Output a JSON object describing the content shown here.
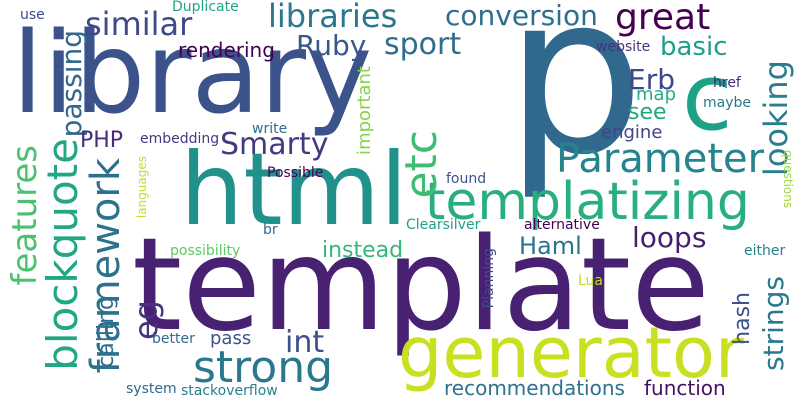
{
  "words": [
    {
      "id": "template",
      "text": "template",
      "color": "#482173"
    },
    {
      "id": "library",
      "text": "library",
      "color": "#3b528b"
    },
    {
      "id": "p",
      "text": "p",
      "color": "#31688e"
    },
    {
      "id": "html",
      "text": "html",
      "color": "#21918c"
    },
    {
      "id": "generator",
      "text": "generator",
      "color": "#c8e020"
    },
    {
      "id": "c",
      "text": "c",
      "color": "#1fa187"
    },
    {
      "id": "templatizing",
      "text": "templatizing",
      "color": "#29af7f"
    },
    {
      "id": "parameter",
      "text": "Parameter",
      "color": "#25848e"
    },
    {
      "id": "strong",
      "text": "strong",
      "color": "#2a788e"
    },
    {
      "id": "etc",
      "text": "etc",
      "color": "#3dbc74"
    },
    {
      "id": "framework",
      "text": "framework",
      "color": "#2c728e"
    },
    {
      "id": "blockquote",
      "text": "blockquote",
      "color": "#22a785"
    },
    {
      "id": "features",
      "text": "features",
      "color": "#4ac16d"
    },
    {
      "id": "libraries",
      "text": "libraries",
      "color": "#2a788e"
    },
    {
      "id": "conversion",
      "text": "conversion",
      "color": "#2d708e"
    },
    {
      "id": "similar",
      "text": "similar",
      "color": "#3e4a89"
    },
    {
      "id": "great",
      "text": "great",
      "color": "#440154"
    },
    {
      "id": "ruby",
      "text": "Ruby",
      "color": "#38588c"
    },
    {
      "id": "sport",
      "text": "sport",
      "color": "#2e6e8e"
    },
    {
      "id": "basic",
      "text": "basic",
      "color": "#1f9e89"
    },
    {
      "id": "smarty",
      "text": "Smarty",
      "color": "#443983"
    },
    {
      "id": "looking",
      "text": "looking",
      "color": "#287d8e"
    },
    {
      "id": "passing",
      "text": "passing",
      "color": "#31688e"
    },
    {
      "id": "erb",
      "text": "Erb",
      "color": "#3f4788"
    },
    {
      "id": "loops",
      "text": "loops",
      "color": "#481f70"
    },
    {
      "id": "haml",
      "text": "Haml",
      "color": "#2b748e"
    },
    {
      "id": "strings",
      "text": "strings",
      "color": "#2a788e"
    },
    {
      "id": "eg",
      "text": "eg",
      "color": "#46327e"
    },
    {
      "id": "int",
      "text": "int",
      "color": "#3b528b"
    },
    {
      "id": "php",
      "text": "PHP",
      "color": "#472d7b"
    },
    {
      "id": "rendering",
      "text": "rendering",
      "color": "#440154"
    },
    {
      "id": "recommendations",
      "text": "recommendations",
      "color": "#2c728e"
    },
    {
      "id": "function",
      "text": "function",
      "color": "#471164"
    },
    {
      "id": "hash",
      "text": "hash",
      "color": "#3b528b"
    },
    {
      "id": "calling",
      "text": "calling",
      "color": "#2e6e8e"
    },
    {
      "id": "instead",
      "text": "instead",
      "color": "#35b779"
    },
    {
      "id": "see",
      "text": "see",
      "color": "#22a884"
    },
    {
      "id": "map",
      "text": "map",
      "color": "#25ac82"
    },
    {
      "id": "engine",
      "text": "engine",
      "color": "#414487"
    },
    {
      "id": "important",
      "text": "important",
      "color": "#86d549"
    },
    {
      "id": "pass",
      "text": "pass",
      "color": "#3b528b"
    },
    {
      "id": "duplicate",
      "text": "Duplicate",
      "color": "#20a386"
    },
    {
      "id": "use",
      "text": "use",
      "color": "#3e4a89"
    },
    {
      "id": "website",
      "text": "website",
      "color": "#46337e"
    },
    {
      "id": "href",
      "text": "href",
      "color": "#482878"
    },
    {
      "id": "maybe",
      "text": "maybe",
      "color": "#2a788e"
    },
    {
      "id": "write",
      "text": "write",
      "color": "#2f6c8e"
    },
    {
      "id": "embedding",
      "text": "embedding",
      "color": "#443a83"
    },
    {
      "id": "possible",
      "text": "Possible",
      "color": "#440154"
    },
    {
      "id": "found",
      "text": "found",
      "color": "#3b528b"
    },
    {
      "id": "clearsilver",
      "text": "Clearsilver",
      "color": "#1fa088"
    },
    {
      "id": "alternative",
      "text": "alternative",
      "color": "#440154"
    },
    {
      "id": "possibility",
      "text": "possibility",
      "color": "#5ec962"
    },
    {
      "id": "languages",
      "text": "languages",
      "color": "#c0df25"
    },
    {
      "id": "br",
      "text": "br",
      "color": "#31688e"
    },
    {
      "id": "planning",
      "text": "Planning",
      "color": "#3e4a89"
    },
    {
      "id": "lua",
      "text": "Lua",
      "color": "#bddf26"
    },
    {
      "id": "better",
      "text": "better",
      "color": "#31688e"
    },
    {
      "id": "system",
      "text": "system",
      "color": "#31688e"
    },
    {
      "id": "stackoverflow",
      "text": "stackoverflow",
      "color": "#26818e"
    },
    {
      "id": "either",
      "text": "either",
      "color": "#277f8e"
    },
    {
      "id": "questions",
      "text": "questions",
      "color": "#a0da39"
    }
  ]
}
